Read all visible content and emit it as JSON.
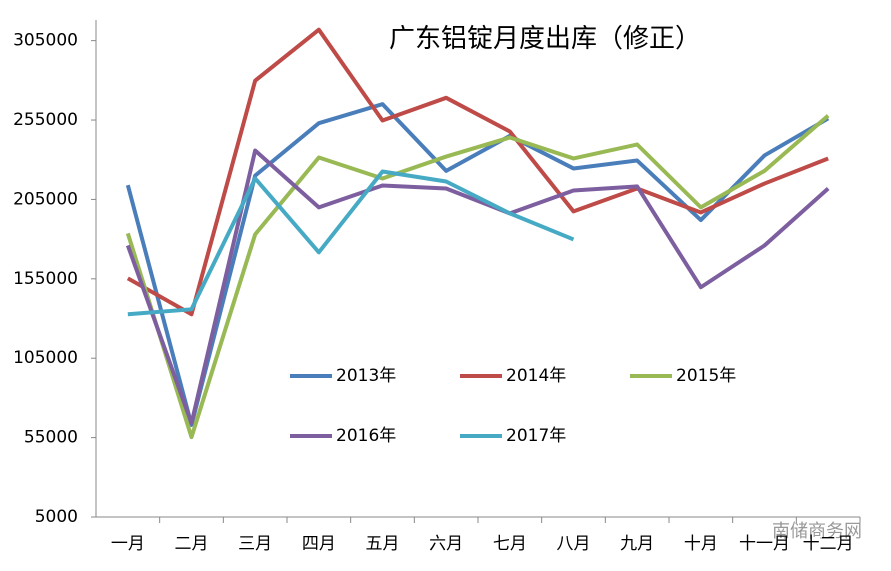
{
  "chart_data": {
    "type": "line",
    "title": "广东铝锭月度出库（修正）",
    "categories": [
      "一月",
      "二月",
      "三月",
      "四月",
      "五月",
      "六月",
      "七月",
      "八月",
      "九月",
      "十月",
      "十一月",
      "十二月"
    ],
    "series": [
      {
        "name": "2013年",
        "color": "#4a7ebb",
        "values": [
          214000,
          63000,
          220000,
          253000,
          265000,
          223000,
          245000,
          224500,
          229500,
          192000,
          232700,
          256000
        ]
      },
      {
        "name": "2014年",
        "color": "#be4b48",
        "values": [
          155300,
          132700,
          279800,
          311900,
          254700,
          269000,
          247800,
          197500,
          211900,
          196800,
          215000,
          230800
        ]
      },
      {
        "name": "2015年",
        "color": "#98b954",
        "values": [
          183600,
          55300,
          183000,
          231400,
          218200,
          232000,
          244000,
          230800,
          239600,
          200000,
          223000,
          257800
        ]
      },
      {
        "name": "2016年",
        "color": "#7d5fa0",
        "values": [
          176000,
          64100,
          235800,
          200000,
          213800,
          211900,
          196200,
          210600,
          213200,
          149700,
          176000,
          211900
        ]
      },
      {
        "name": "2017年",
        "color": "#46aac5",
        "values": [
          132700,
          135800,
          218200,
          171700,
          222600,
          216300,
          196200,
          179800,
          null,
          null,
          null,
          null
        ]
      }
    ],
    "ylim": [
      5000,
      318000
    ],
    "yticks": [
      5000,
      55000,
      105000,
      155000,
      205000,
      255000,
      305000
    ],
    "legend": "inside",
    "watermark": "南储商务网"
  }
}
